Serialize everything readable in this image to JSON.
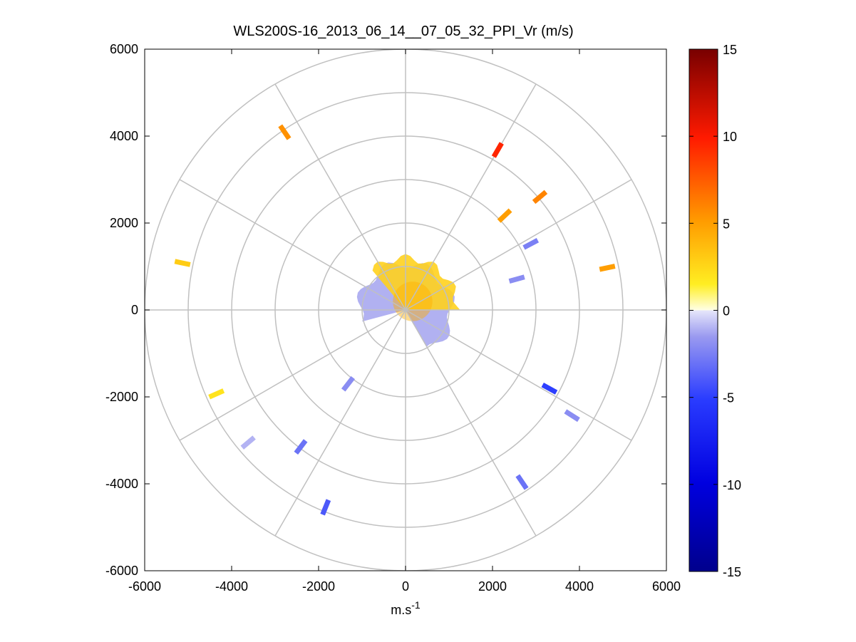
{
  "chart_data": {
    "type": "polar-ppi",
    "title": "WLS200S-16_2013_06_14__07_05_32_PPI_Vr (m/s)",
    "xlabel_base": "m.s",
    "xlabel_sup": "-1",
    "ylabel": "",
    "xlim": [
      -6000,
      6000
    ],
    "ylim": [
      -6000,
      6000
    ],
    "x_ticks": [
      {
        "value": -6000,
        "label": "-6000"
      },
      {
        "value": -4000,
        "label": "-4000"
      },
      {
        "value": -2000,
        "label": "-2000"
      },
      {
        "value": 0,
        "label": "0"
      },
      {
        "value": 2000,
        "label": "2000"
      },
      {
        "value": 4000,
        "label": "4000"
      },
      {
        "value": 6000,
        "label": "6000"
      }
    ],
    "y_ticks": [
      {
        "value": 6000,
        "label": "6000"
      },
      {
        "value": 4000,
        "label": "4000"
      },
      {
        "value": 2000,
        "label": "2000"
      },
      {
        "value": 0,
        "label": "0"
      },
      {
        "value": -2000,
        "label": "-2000"
      },
      {
        "value": -4000,
        "label": "-4000"
      },
      {
        "value": -6000,
        "label": "-6000"
      }
    ],
    "polar_grid": {
      "rings_m": [
        1000,
        2000,
        3000,
        4000,
        5000,
        6000
      ],
      "spokes_deg": [
        0,
        30,
        60,
        90,
        120,
        150,
        180,
        210,
        240,
        270,
        300,
        330
      ],
      "color": "#c0c0c0"
    },
    "colorbar": {
      "min": -15,
      "max": 15,
      "ticks": [
        {
          "value": 15,
          "label": "15"
        },
        {
          "value": 10,
          "label": "10"
        },
        {
          "value": 5,
          "label": "5"
        },
        {
          "value": 0,
          "label": "0"
        },
        {
          "value": -5,
          "label": "-5"
        },
        {
          "value": -10,
          "label": "-10"
        },
        {
          "value": -15,
          "label": "-15"
        }
      ]
    },
    "near_field": {
      "description_range_m": [
        0,
        1300
      ],
      "positive_color": "#ffd21e",
      "negative_color": "#a8a8f0"
    },
    "segments": [
      {
        "x": -2780,
        "y": 4090,
        "vr": 5.5
      },
      {
        "x": 2120,
        "y": 3680,
        "vr": 9.5
      },
      {
        "x": 3090,
        "y": 2600,
        "vr": 6.0
      },
      {
        "x": 2280,
        "y": 2170,
        "vr": 5.0
      },
      {
        "x": 2880,
        "y": 1520,
        "vr": -2.5
      },
      {
        "x": 4640,
        "y": 970,
        "vr": 5.0
      },
      {
        "x": 2560,
        "y": 710,
        "vr": -2.0
      },
      {
        "x": -5130,
        "y": 1080,
        "vr": 3.0
      },
      {
        "x": -4350,
        "y": -1930,
        "vr": 2.0
      },
      {
        "x": -3620,
        "y": -3050,
        "vr": -1.0
      },
      {
        "x": -2410,
        "y": -3150,
        "vr": -3.0
      },
      {
        "x": -1840,
        "y": -4540,
        "vr": -4.0
      },
      {
        "x": -1320,
        "y": -1700,
        "vr": -2.0
      },
      {
        "x": 3310,
        "y": -1810,
        "vr": -5.0
      },
      {
        "x": 3830,
        "y": -2430,
        "vr": -2.0
      },
      {
        "x": 2680,
        "y": -3960,
        "vr": -3.0
      }
    ]
  }
}
